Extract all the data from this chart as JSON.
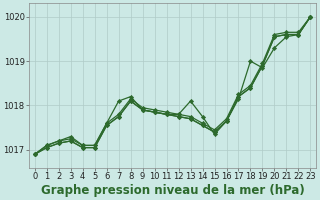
{
  "title": "Graphe pression niveau de la mer (hPa)",
  "xlabel_hours": [
    0,
    1,
    2,
    3,
    4,
    5,
    6,
    7,
    8,
    9,
    10,
    11,
    12,
    13,
    14,
    15,
    16,
    17,
    18,
    19,
    20,
    21,
    22,
    23
  ],
  "series": [
    [
      1016.9,
      1017.05,
      1017.15,
      1017.2,
      1017.05,
      1017.05,
      1017.55,
      1017.75,
      1018.1,
      1017.9,
      1017.85,
      1017.8,
      1017.75,
      1017.7,
      1017.55,
      1017.4,
      1017.65,
      1018.2,
      1018.4,
      1018.9,
      1019.55,
      1019.6,
      1019.6,
      1020.0
    ],
    [
      1016.9,
      1017.05,
      1017.15,
      1017.2,
      1017.05,
      1017.05,
      1017.55,
      1017.75,
      1018.1,
      1017.9,
      1017.85,
      1017.8,
      1017.75,
      1017.7,
      1017.55,
      1017.4,
      1017.65,
      1018.2,
      1018.4,
      1018.9,
      1019.55,
      1019.6,
      1019.6,
      1020.0
    ],
    [
      1016.9,
      1017.1,
      1017.2,
      1017.25,
      1017.1,
      1017.1,
      1017.6,
      1017.8,
      1018.15,
      1017.95,
      1017.9,
      1017.85,
      1017.8,
      1017.75,
      1017.6,
      1017.45,
      1017.7,
      1018.25,
      1018.45,
      1018.95,
      1019.6,
      1019.65,
      1019.65,
      1020.0
    ],
    [
      1016.9,
      1017.1,
      1017.2,
      1017.3,
      1017.1,
      1017.1,
      1017.6,
      1018.1,
      1018.2,
      1017.9,
      1017.85,
      1017.8,
      1017.8,
      1018.1,
      1017.75,
      1017.35,
      1017.65,
      1018.15,
      1019.0,
      1018.85,
      1019.3,
      1019.55,
      1019.6,
      1020.0
    ]
  ],
  "line_color": "#2d6a2d",
  "marker": "D",
  "marker_size": 2.2,
  "bg_color": "#cce9e5",
  "grid_color": "#b0ccc8",
  "ylim": [
    1016.6,
    1020.3
  ],
  "yticks": [
    1017,
    1018,
    1019,
    1020
  ],
  "xlim": [
    -0.5,
    23.5
  ],
  "title_fontsize": 8.5,
  "tick_fontsize": 6.0,
  "linewidth": 0.9
}
